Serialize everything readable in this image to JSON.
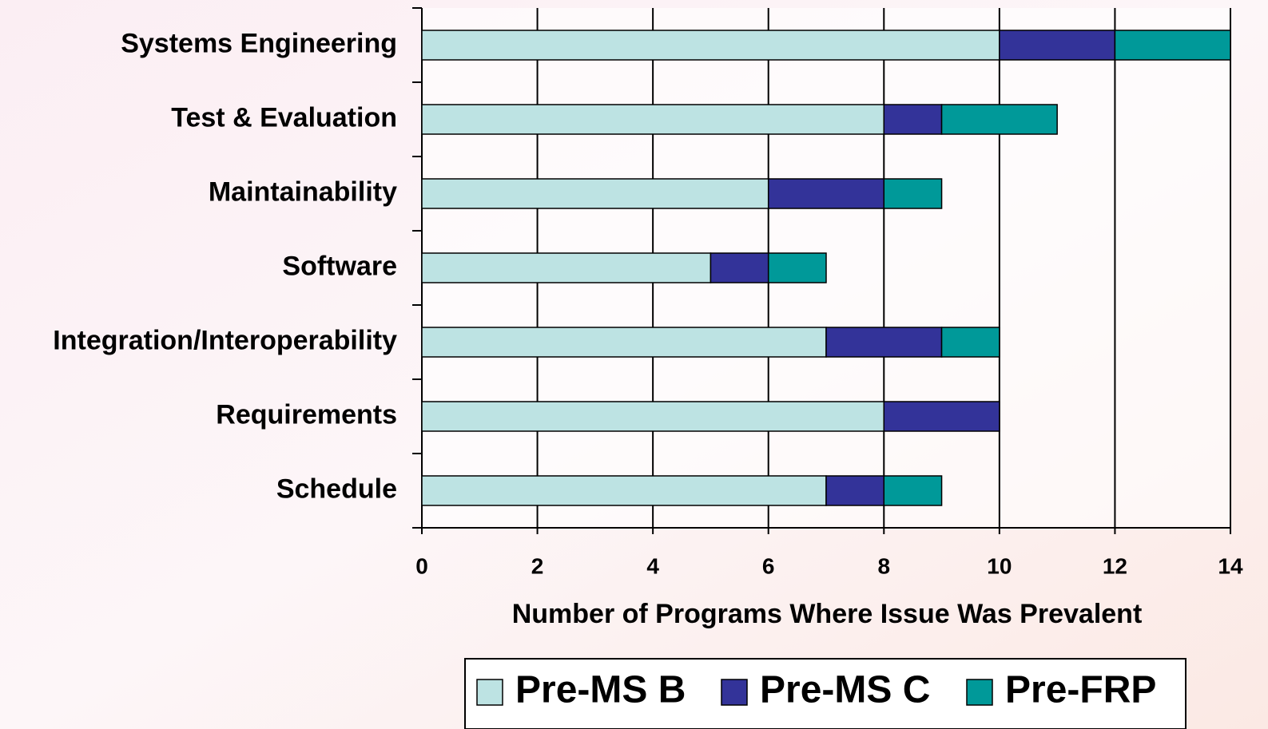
{
  "chart_data": {
    "type": "bar",
    "orientation": "horizontal",
    "stacked": true,
    "xlabel": "Number of Programs Where Issue Was Prevalent",
    "categories": [
      "Systems Engineering",
      "Test & Evaluation",
      "Maintainability",
      "Software",
      "Integration/Interoperability",
      "Requirements",
      "Schedule"
    ],
    "series": [
      {
        "name": "Pre-MS B",
        "color": "#bde3e3",
        "values": [
          10,
          8,
          6,
          5,
          7,
          8,
          7
        ]
      },
      {
        "name": "Pre-MS C",
        "color": "#333399",
        "values": [
          2,
          1,
          2,
          1,
          2,
          2,
          1
        ]
      },
      {
        "name": "Pre-FRP",
        "color": "#009999",
        "values": [
          2,
          2,
          1,
          1,
          1,
          0,
          1
        ]
      }
    ],
    "xlim": [
      0,
      14
    ],
    "xticks": [
      0,
      2,
      4,
      6,
      8,
      10,
      12,
      14
    ],
    "grid": true,
    "legend": "bottom"
  }
}
